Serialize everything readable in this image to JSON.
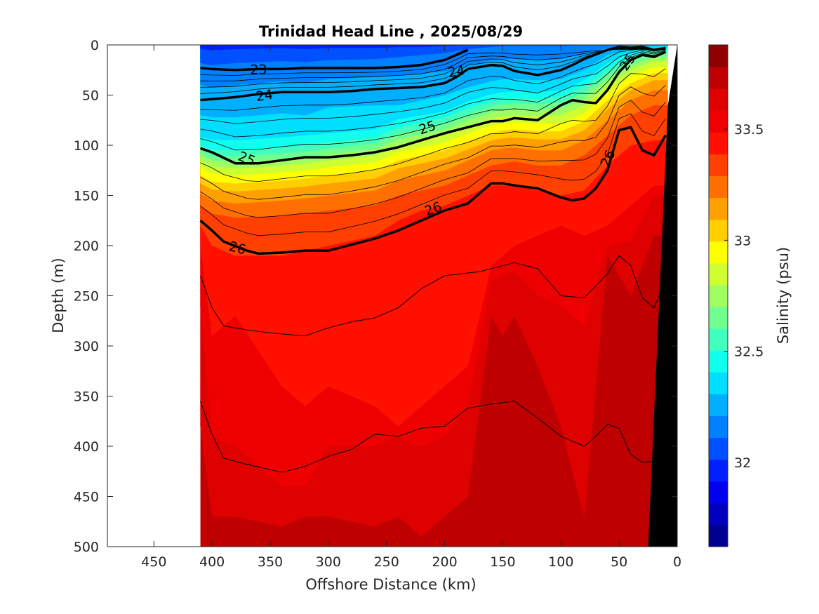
{
  "chart_data": {
    "type": "heatmap",
    "title": "Trinidad Head Line , 2025/08/29",
    "xlabel": "Offshore Distance (km)",
    "ylabel": "Depth (m)",
    "colorbar_label": "Salinity (psu)",
    "xlim": [
      490,
      0
    ],
    "ylim": [
      500,
      0
    ],
    "x_reversed": true,
    "y_reversed": true,
    "x_ticks": [
      450,
      400,
      350,
      300,
      250,
      200,
      150,
      100,
      50,
      0
    ],
    "y_ticks": [
      0,
      50,
      100,
      150,
      200,
      250,
      300,
      350,
      400,
      450,
      500
    ],
    "colorbar": {
      "range": [
        31.62,
        33.88
      ],
      "ticks": [
        32,
        32.5,
        33,
        33.5
      ],
      "levels": 23,
      "colors": [
        "#00008f",
        "#0000bf",
        "#0000ef",
        "#0020ff",
        "#0050ff",
        "#0080ff",
        "#00afff",
        "#00dfff",
        "#10ffef",
        "#40ffbf",
        "#70ff8f",
        "#9fff60",
        "#cfff30",
        "#ffff00",
        "#ffcf00",
        "#ff9f00",
        "#ff7000",
        "#ff4000",
        "#ff1000",
        "#ef0000",
        "#df0000",
        "#bf0000",
        "#8f0000"
      ]
    },
    "data_extent_km": [
      410,
      0
    ],
    "salinity_bands": [
      {
        "label": "33.85",
        "color": "#bf0000",
        "x": [
          410,
          400,
          380,
          340,
          320,
          300,
          260,
          240,
          220,
          200,
          180,
          160,
          150,
          140,
          120,
          100,
          80,
          60,
          40,
          20
        ],
        "y": [
          500,
          520,
          520,
          520,
          520,
          520,
          520,
          520,
          520,
          520,
          520,
          520,
          520,
          520,
          520,
          520,
          520,
          520,
          520,
          520
        ]
      },
      {
        "label": "33.8",
        "color": "#df0000",
        "x": [
          410,
          400,
          380,
          340,
          320,
          300,
          260,
          240,
          220,
          200,
          180,
          160,
          150,
          140,
          120,
          100,
          80,
          60,
          40,
          20
        ],
        "y": [
          380,
          470,
          470,
          480,
          470,
          470,
          480,
          470,
          490,
          470,
          450,
          270,
          290,
          270,
          320,
          380,
          470,
          210,
          250,
          190
        ]
      },
      {
        "label": "33.7",
        "color": "#ef0000",
        "x": [
          410,
          400,
          380,
          340,
          320,
          300,
          260,
          240,
          220,
          200,
          180,
          160,
          150,
          140,
          120,
          100,
          80,
          60,
          40,
          20
        ],
        "y": [
          260,
          390,
          400,
          440,
          440,
          400,
          400,
          390,
          400,
          390,
          360,
          235,
          230,
          225,
          250,
          260,
          280,
          200,
          195,
          150
        ]
      },
      {
        "label": "33.6",
        "color": "#ff1000",
        "x": [
          410,
          400,
          380,
          340,
          320,
          300,
          260,
          240,
          220,
          200,
          180,
          160,
          150,
          140,
          120,
          100,
          80,
          60,
          40,
          20
        ],
        "y": [
          200,
          290,
          270,
          340,
          360,
          340,
          360,
          380,
          360,
          340,
          320,
          220,
          210,
          200,
          190,
          180,
          190,
          180,
          160,
          140
        ]
      },
      {
        "label": "33.5",
        "color": "#ff4000",
        "x": [
          410,
          400,
          380,
          340,
          320,
          300,
          260,
          240,
          220,
          200,
          180,
          160,
          150,
          140,
          120,
          100,
          80,
          60,
          40,
          20
        ],
        "y": [
          180,
          200,
          210,
          210,
          205,
          200,
          190,
          175,
          165,
          160,
          150,
          140,
          140,
          140,
          145,
          150,
          145,
          120,
          100,
          95
        ]
      },
      {
        "label": "33.4",
        "color": "#ff7000",
        "x": [
          410,
          400,
          380,
          340,
          320,
          300,
          260,
          240,
          220,
          200,
          180,
          160,
          150,
          140,
          120,
          100,
          80,
          60,
          40,
          20
        ],
        "y": [
          160,
          168,
          172,
          170,
          168,
          165,
          160,
          150,
          145,
          140,
          130,
          120,
          118,
          116,
          120,
          120,
          110,
          90,
          70,
          60
        ]
      },
      {
        "label": "33.3",
        "color": "#ff9f00",
        "x": [
          410,
          400,
          380,
          340,
          320,
          300,
          260,
          240,
          220,
          200,
          180,
          160,
          150,
          140,
          120,
          100,
          80,
          60,
          40,
          20
        ],
        "y": [
          148,
          155,
          158,
          155,
          153,
          150,
          145,
          135,
          130,
          125,
          115,
          105,
          103,
          102,
          105,
          105,
          95,
          75,
          55,
          45
        ]
      },
      {
        "label": "33.2",
        "color": "#ffcf00",
        "x": [
          410,
          400,
          380,
          340,
          320,
          300,
          260,
          240,
          220,
          200,
          180,
          160,
          150,
          140,
          120,
          100,
          80,
          60,
          40,
          20
        ],
        "y": [
          138,
          144,
          146,
          143,
          141,
          138,
          133,
          123,
          118,
          113,
          104,
          95,
          93,
          92,
          94,
          94,
          85,
          64,
          45,
          35
        ]
      },
      {
        "label": "33.1",
        "color": "#ffff00",
        "x": [
          410,
          400,
          380,
          340,
          320,
          300,
          260,
          240,
          220,
          200,
          180,
          160,
          150,
          140,
          120,
          100,
          80,
          60,
          40,
          20
        ],
        "y": [
          130,
          136,
          138,
          135,
          133,
          130,
          125,
          115,
          110,
          105,
          96,
          88,
          85,
          84,
          86,
          86,
          76,
          55,
          38,
          28
        ]
      },
      {
        "label": "33.0",
        "color": "#cfff30",
        "x": [
          410,
          400,
          380,
          340,
          320,
          300,
          260,
          240,
          220,
          200,
          180,
          160,
          150,
          140,
          120,
          100,
          80,
          60,
          40,
          20
        ],
        "y": [
          122,
          128,
          130,
          127,
          125,
          122,
          117,
          107,
          102,
          97,
          88,
          80,
          78,
          77,
          78,
          78,
          68,
          48,
          31,
          22
        ]
      },
      {
        "label": "32.9",
        "color": "#9fff60",
        "x": [
          410,
          400,
          380,
          340,
          320,
          300,
          260,
          240,
          220,
          200,
          180,
          160,
          150,
          140,
          120,
          100,
          80,
          60,
          40,
          20
        ],
        "y": [
          115,
          121,
          123,
          120,
          118,
          115,
          110,
          100,
          95,
          90,
          81,
          73,
          71,
          70,
          71,
          70,
          60,
          41,
          25,
          16
        ]
      },
      {
        "label": "32.8",
        "color": "#70ff8f",
        "x": [
          410,
          400,
          380,
          340,
          320,
          300,
          260,
          240,
          220,
          200,
          180,
          160,
          150,
          140,
          120,
          100,
          80,
          60,
          40,
          20
        ],
        "y": [
          110,
          115,
          117,
          114,
          112,
          109,
          104,
          94,
          89,
          84,
          75,
          67,
          65,
          64,
          65,
          63,
          53,
          35,
          20,
          12
        ]
      },
      {
        "label": "32.7",
        "color": "#40ffbf",
        "x": [
          410,
          400,
          380,
          340,
          320,
          300,
          260,
          240,
          220,
          200,
          180,
          160,
          150,
          140,
          120,
          100,
          80,
          60,
          40,
          20
        ],
        "y": [
          105,
          110,
          111,
          108,
          106,
          103,
          98,
          88,
          83,
          78,
          69,
          61,
          59,
          58,
          59,
          57,
          47,
          29,
          16,
          8
        ]
      },
      {
        "label": "32.6",
        "color": "#10ffef",
        "x": [
          410,
          400,
          380,
          340,
          320,
          300,
          260,
          240,
          220,
          200,
          180,
          160,
          150,
          140,
          120,
          100,
          80,
          60,
          40,
          20
        ],
        "y": [
          100,
          104,
          105,
          102,
          100,
          97,
          92,
          82,
          77,
          72,
          63,
          56,
          54,
          53,
          54,
          51,
          41,
          24,
          12,
          5
        ]
      },
      {
        "label": "32.5",
        "color": "#00dfff",
        "x": [
          410,
          400,
          380,
          340,
          320,
          300,
          260,
          240,
          220,
          200,
          180,
          160,
          150,
          140,
          120,
          100,
          80,
          60,
          40,
          20
        ],
        "y": [
          92,
          94,
          95,
          92,
          90,
          88,
          84,
          74,
          70,
          66,
          56,
          49,
          47,
          46,
          47,
          45,
          35,
          18,
          8,
          3
        ]
      },
      {
        "label": "32.4",
        "color": "#00afff",
        "x": [
          410,
          400,
          380,
          340,
          320,
          300,
          260,
          240,
          220,
          200,
          180,
          160,
          150,
          140,
          120,
          100,
          80,
          60,
          40,
          20
        ],
        "y": [
          70,
          72,
          72,
          68,
          70,
          62,
          60,
          60,
          55,
          50,
          42,
          36,
          34,
          34,
          35,
          34,
          25,
          10,
          4,
          1
        ]
      },
      {
        "label": "32.3",
        "color": "#0080ff",
        "x": [
          410,
          400,
          380,
          340,
          320,
          300,
          260,
          240,
          220,
          200,
          180,
          160,
          150,
          140,
          120,
          100,
          80,
          60,
          40,
          20
        ],
        "y": [
          40,
          42,
          40,
          36,
          38,
          34,
          32,
          30,
          28,
          26,
          20,
          15,
          14,
          14,
          15,
          14,
          8,
          3,
          1,
          0
        ]
      },
      {
        "label": "32.2",
        "color": "#0050ff",
        "x": [
          410,
          400,
          380,
          340,
          320,
          300,
          260,
          240,
          220,
          200,
          180,
          160,
          150,
          140,
          120,
          100,
          80,
          60,
          40,
          20
        ],
        "y": [
          18,
          20,
          18,
          16,
          17,
          15,
          14,
          12,
          10,
          8,
          4,
          2,
          1,
          1,
          1,
          1,
          0,
          0,
          0,
          0
        ]
      },
      {
        "label": "32.1",
        "color": "#0020ff",
        "x": [
          410,
          400,
          380,
          340,
          320,
          300,
          260,
          240,
          220,
          200,
          180,
          160,
          150,
          140,
          120,
          100,
          80,
          60,
          40,
          20
        ],
        "y": [
          4,
          5,
          4,
          3,
          4,
          3,
          3,
          2,
          2,
          1,
          0,
          0,
          0,
          0,
          0,
          0,
          0,
          0,
          0,
          0
        ]
      }
    ],
    "density_contours": [
      {
        "label": "23",
        "major": true,
        "x": [
          410,
          400,
          380,
          360,
          340,
          320,
          300,
          280,
          260,
          240,
          220,
          200,
          180
        ],
        "y": [
          23,
          24,
          25,
          24,
          24,
          23,
          23,
          23,
          23,
          22,
          20,
          15,
          5
        ]
      },
      {
        "label": "24",
        "major": true,
        "x": [
          410,
          400,
          380,
          360,
          340,
          320,
          300,
          280,
          260,
          240,
          220,
          200,
          190,
          180,
          160,
          150,
          140,
          120,
          100,
          90,
          80,
          60,
          50,
          40,
          30,
          20,
          10
        ],
        "y": [
          55,
          54,
          52,
          49,
          47,
          47,
          47,
          46,
          44,
          43,
          42,
          38,
          32,
          24,
          20,
          21,
          26,
          30,
          25,
          20,
          14,
          5,
          2,
          3,
          2,
          5,
          3
        ]
      },
      {
        "label": "25",
        "major": true,
        "x": [
          410,
          400,
          380,
          360,
          340,
          320,
          300,
          280,
          260,
          240,
          220,
          200,
          180,
          160,
          150,
          140,
          120,
          100,
          90,
          80,
          70,
          60,
          50,
          40,
          30,
          20,
          10
        ],
        "y": [
          103,
          107,
          118,
          118,
          115,
          112,
          112,
          110,
          107,
          102,
          95,
          88,
          82,
          76,
          76,
          73,
          75,
          60,
          55,
          57,
          58,
          45,
          27,
          15,
          10,
          12,
          7
        ]
      },
      {
        "label": "26",
        "major": true,
        "x": [
          410,
          400,
          390,
          370,
          360,
          340,
          320,
          300,
          280,
          260,
          240,
          220,
          200,
          180,
          160,
          150,
          140,
          120,
          100,
          90,
          80,
          70,
          60,
          50,
          40,
          30,
          20,
          10
        ],
        "y": [
          175,
          185,
          196,
          205,
          208,
          207,
          205,
          205,
          199,
          193,
          185,
          175,
          165,
          158,
          138,
          138,
          140,
          143,
          152,
          155,
          153,
          143,
          125,
          85,
          82,
          105,
          110,
          90
        ]
      },
      {
        "label": "",
        "major": false,
        "x": [
          410,
          400,
          390,
          370,
          350,
          320,
          300,
          280,
          260,
          240,
          220,
          200,
          170,
          140,
          120,
          100,
          80,
          60,
          50,
          40,
          30,
          20,
          15
        ],
        "y": [
          230,
          262,
          280,
          284,
          287,
          290,
          282,
          276,
          272,
          262,
          243,
          230,
          226,
          217,
          223,
          250,
          252,
          228,
          210,
          220,
          252,
          262,
          248
        ]
      },
      {
        "label": "",
        "major": false,
        "x": [
          410,
          400,
          390,
          370,
          340,
          320,
          300,
          280,
          260,
          240,
          220,
          200,
          180,
          160,
          140,
          120,
          100,
          80,
          70,
          60,
          50,
          40,
          30,
          20
        ],
        "y": [
          355,
          388,
          412,
          418,
          426,
          420,
          410,
          403,
          388,
          390,
          382,
          380,
          362,
          358,
          355,
          372,
          390,
          400,
          390,
          378,
          382,
          408,
          416,
          415
        ]
      }
    ],
    "bathymetry_color": "#000000",
    "bathymetry_x": [
      0,
      8,
      25
    ],
    "bathymetry_y": [
      0,
      60,
      500
    ]
  }
}
